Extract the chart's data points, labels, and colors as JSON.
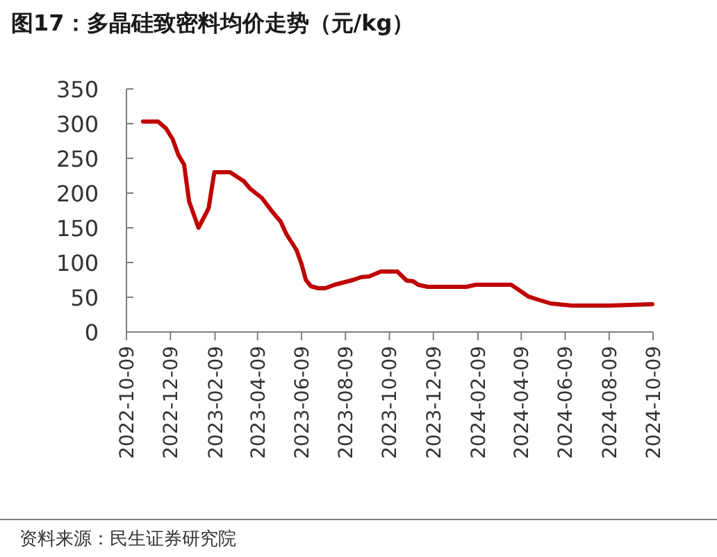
{
  "chart_data": {
    "type": "line",
    "title": "图17：多晶硅致密料均价走势（元/kg）",
    "annotations": [
      "资料来源：民生证券研究院"
    ],
    "x": [
      "2022-11-01",
      "2022-11-22",
      "2022-12-03",
      "2022-12-12",
      "2022-12-20",
      "2022-12-28",
      "2023-01-04",
      "2023-01-17",
      "2023-01-31",
      "2023-02-08",
      "2023-03-02",
      "2023-03-21",
      "2023-03-30",
      "2023-04-15",
      "2023-04-28",
      "2023-05-11",
      "2023-05-19",
      "2023-06-02",
      "2023-06-09",
      "2023-06-15",
      "2023-06-22",
      "2023-07-02",
      "2023-07-12",
      "2023-07-25",
      "2023-08-20",
      "2023-08-31",
      "2023-09-11",
      "2023-09-27",
      "2023-10-20",
      "2023-11-02",
      "2023-11-11",
      "2023-11-18",
      "2023-12-01",
      "2024-01-24",
      "2024-02-06",
      "2024-03-26",
      "2024-04-05",
      "2024-04-19",
      "2024-05-04",
      "2024-05-20",
      "2024-06-18",
      "2024-08-09",
      "2024-10-08"
    ],
    "series": [
      {
        "color": "#c00000",
        "values": [
          303,
          303,
          293,
          278,
          255,
          241,
          188,
          150,
          178,
          230,
          230,
          217,
          206,
          193,
          175,
          159,
          141,
          118,
          98,
          75,
          66,
          63,
          63,
          68,
          75,
          79,
          80,
          87,
          87,
          74,
          73,
          68,
          65,
          65,
          68,
          68,
          61,
          51,
          46,
          41,
          38,
          38,
          40
        ]
      }
    ],
    "xlim": [
      "2022-10-09",
      "2024-10-09"
    ],
    "xticks": [
      "2022-10-09",
      "2022-12-09",
      "2023-02-09",
      "2023-04-09",
      "2023-06-09",
      "2023-08-09",
      "2023-10-09",
      "2023-12-09",
      "2024-02-09",
      "2024-04-09",
      "2024-06-09",
      "2024-08-09",
      "2024-10-09"
    ],
    "ylim": [
      0,
      350
    ],
    "yticks": [
      0,
      50,
      100,
      150,
      200,
      250,
      300,
      350
    ],
    "grid": false,
    "marker": "none",
    "line_style": "solid"
  }
}
